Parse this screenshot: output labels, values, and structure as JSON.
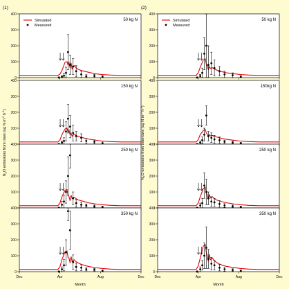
{
  "figure": {
    "x_title": "Month",
    "x_ticks": [
      "Dec",
      "Apr",
      "Aug",
      "Dec"
    ],
    "legend": {
      "simulated": "Simulated",
      "measured": "Measured"
    }
  },
  "chart_data": [
    {
      "type": "line",
      "figure_label": "(1)",
      "ylabel": "N2O emissions from rows (ug N m-2 h-1)",
      "ylabel_parts": {
        "base": "N",
        "sub": "2",
        "mid": "O emissions from rows (ug N m",
        "sup1": "-2",
        "mid2": " h",
        "sup2": "-1",
        "end": ")"
      },
      "xlabel": "Month",
      "x_ticks": [
        "Dec",
        "Apr",
        "Aug",
        "Dec"
      ],
      "ylim": [
        0,
        400
      ],
      "y_ticks": [
        0,
        100,
        200,
        300,
        400
      ],
      "legend": [
        "Simulated",
        "Measured"
      ],
      "panels": [
        {
          "label": "50 kg N",
          "simulated": {
            "x": [
              0,
              2,
              3.8,
              4.0,
              4.2,
              4.5,
              4.7,
              4.8,
              4.9,
              5.0,
              5.1,
              5.2,
              5.4,
              5.6,
              5.8,
              6.1,
              6.4,
              6.8,
              7.5,
              8.2,
              9.0,
              10,
              12
            ],
            "y": [
              14,
              14,
              14,
              22,
              45,
              95,
              100,
              78,
              95,
              60,
              92,
              55,
              75,
              62,
              52,
              45,
              40,
              34,
              24,
              19,
              16,
              14,
              14
            ]
          },
          "measured": {
            "x": [
              3.9,
              4.2,
              4.4,
              4.6,
              4.8,
              5.0,
              5.3,
              5.6,
              6.1,
              6.6,
              7.4,
              8.2
            ],
            "y": [
              0,
              5,
              12,
              30,
              160,
              80,
              70,
              40,
              20,
              8,
              10,
              5
            ],
            "err": [
              5,
              8,
              15,
              35,
              110,
              60,
              50,
              35,
              20,
              10,
              10,
              8
            ]
          },
          "arrows": [
            4.3,
            4.6
          ]
        },
        {
          "label": "150 kg N",
          "simulated": {
            "x": [
              0,
              2,
              3.8,
              4.0,
              4.2,
              4.5,
              4.7,
              4.8,
              4.9,
              5.0,
              5.1,
              5.2,
              5.4,
              5.6,
              5.8,
              6.1,
              6.4,
              6.8,
              7.5,
              8.2,
              9.0,
              10,
              12
            ],
            "y": [
              14,
              14,
              14,
              25,
              60,
              95,
              100,
              75,
              88,
              58,
              70,
              50,
              62,
              55,
              48,
              44,
              38,
              32,
              25,
              19,
              16,
              14,
              14
            ]
          },
          "measured": {
            "x": [
              3.9,
              4.2,
              4.4,
              4.6,
              4.8,
              5.0,
              5.3,
              5.6,
              6.1,
              6.6,
              7.4,
              8.2
            ],
            "y": [
              0,
              10,
              20,
              80,
              160,
              110,
              70,
              50,
              40,
              20,
              15,
              5
            ],
            "err": [
              5,
              10,
              20,
              60,
              90,
              70,
              50,
              30,
              25,
              15,
              12,
              8
            ]
          },
          "arrows": [
            4.3,
            4.6
          ]
        },
        {
          "label": "250 kg N",
          "simulated": {
            "x": [
              0,
              2,
              3.8,
              4.0,
              4.2,
              4.5,
              4.7,
              4.8,
              4.9,
              5.0,
              5.1,
              5.2,
              5.4,
              5.6,
              5.8,
              6.1,
              6.4,
              6.8,
              7.5,
              8.2,
              9.0,
              10,
              12
            ],
            "y": [
              14,
              14,
              14,
              30,
              70,
              110,
              115,
              80,
              70,
              45,
              80,
              60,
              68,
              58,
              50,
              45,
              40,
              32,
              25,
              20,
              16,
              14,
              14
            ]
          },
          "measured": {
            "x": [
              3.9,
              4.2,
              4.4,
              4.6,
              4.8,
              5.0,
              5.3,
              5.6,
              6.1,
              6.6,
              7.4,
              8.2
            ],
            "y": [
              0,
              20,
              40,
              100,
              200,
              330,
              60,
              30,
              20,
              15,
              10,
              5
            ],
            "err": [
              5,
              20,
              40,
              70,
              120,
              80,
              40,
              25,
              15,
              10,
              8,
              6
            ]
          },
          "arrows": [
            4.3,
            4.6
          ]
        },
        {
          "label": "350 kg N",
          "simulated": {
            "x": [
              0,
              2,
              3.8,
              4.0,
              4.2,
              4.5,
              4.7,
              4.8,
              4.9,
              5.0,
              5.1,
              5.2,
              5.4,
              5.6,
              5.8,
              6.1,
              6.4,
              6.8,
              7.5,
              8.2,
              9.0,
              10,
              12
            ],
            "y": [
              14,
              14,
              14,
              30,
              75,
              125,
              130,
              90,
              85,
              55,
              95,
              65,
              75,
              62,
              55,
              46,
              40,
              33,
              25,
              20,
              16,
              14,
              14
            ]
          },
          "measured": {
            "x": [
              3.9,
              4.2,
              4.4,
              4.6,
              4.8,
              5.0,
              5.3,
              5.6,
              6.1,
              6.6,
              7.4,
              8.2
            ],
            "y": [
              0,
              15,
              40,
              120,
              380,
              260,
              60,
              30,
              25,
              15,
              12,
              5
            ],
            "err": [
              5,
              15,
              35,
              80,
              60,
              120,
              45,
              25,
              18,
              10,
              8,
              6
            ]
          },
          "arrows": [
            4.3,
            4.6
          ]
        }
      ]
    },
    {
      "type": "line",
      "figure_label": "(2)",
      "ylabel": "N2O emissions from interrows (ug N m-2 h-1)",
      "ylabel_parts": {
        "base": "N",
        "sub": "2",
        "mid": "O emissions from interrows (ug N m",
        "sup1": "-2",
        "mid2": " h",
        "sup2": "-1",
        "end": ")"
      },
      "xlabel": "Month",
      "x_ticks": [
        "Dec",
        "Apr",
        "Aug",
        "Dec"
      ],
      "ylim": [
        0,
        400
      ],
      "y_ticks": [
        0,
        100,
        200,
        300,
        400
      ],
      "legend": [
        "Simulated",
        "Measured"
      ],
      "panels": [
        {
          "label": "50 kg N",
          "simulated": {
            "x": [
              0,
              2,
              3.8,
              4.0,
              4.2,
              4.5,
              4.7,
              4.8,
              4.9,
              5.0,
              5.1,
              5.2,
              5.4,
              5.6,
              5.8,
              6.1,
              6.4,
              6.8,
              7.5,
              8.2,
              9.0,
              10,
              12
            ],
            "y": [
              14,
              14,
              14,
              30,
              65,
              110,
              118,
              85,
              70,
              50,
              70,
              58,
              62,
              55,
              48,
              42,
              36,
              30,
              24,
              19,
              16,
              14,
              14
            ]
          },
          "measured": {
            "x": [
              3.9,
              4.2,
              4.4,
              4.6,
              4.8,
              5.0,
              5.3,
              5.6,
              6.1,
              6.6,
              7.4,
              8.2
            ],
            "y": [
              0,
              10,
              30,
              150,
              200,
              80,
              90,
              60,
              40,
              20,
              15,
              5
            ],
            "err": [
              5,
              10,
              30,
              100,
              200,
              120,
              70,
              50,
              30,
              20,
              15,
              8
            ]
          },
          "arrows": [
            4.3,
            4.6
          ]
        },
        {
          "label": "150kg N",
          "simulated": {
            "x": [
              0,
              2,
              3.8,
              4.0,
              4.2,
              4.5,
              4.7,
              4.8,
              4.9,
              5.0,
              5.1,
              5.2,
              5.4,
              5.6,
              5.8,
              6.1,
              6.4,
              6.8,
              7.5,
              8.2,
              9.0,
              10,
              12
            ],
            "y": [
              14,
              14,
              14,
              28,
              60,
              85,
              92,
              70,
              62,
              45,
              60,
              52,
              55,
              48,
              45,
              40,
              35,
              30,
              24,
              19,
              16,
              14,
              14
            ]
          },
          "measured": {
            "x": [
              3.9,
              4.2,
              4.4,
              4.6,
              4.8,
              5.0,
              5.3,
              5.6,
              6.1,
              6.6,
              7.4,
              8.2
            ],
            "y": [
              0,
              10,
              25,
              60,
              180,
              50,
              40,
              30,
              25,
              15,
              10,
              5
            ],
            "err": [
              5,
              10,
              20,
              40,
              60,
              30,
              30,
              25,
              20,
              10,
              8,
              6
            ]
          },
          "arrows": [
            4.3,
            4.6
          ]
        },
        {
          "label": "250 kg N",
          "simulated": {
            "x": [
              0,
              2,
              3.8,
              4.0,
              4.2,
              4.5,
              4.7,
              4.8,
              4.9,
              5.0,
              5.1,
              5.2,
              5.4,
              5.6,
              5.8,
              6.1,
              6.4,
              6.8,
              7.5,
              8.2,
              9.0,
              10,
              12
            ],
            "y": [
              14,
              14,
              14,
              30,
              70,
              120,
              130,
              95,
              80,
              55,
              85,
              62,
              70,
              58,
              50,
              44,
              38,
              32,
              25,
              20,
              16,
              14,
              14
            ]
          },
          "measured": {
            "x": [
              3.9,
              4.2,
              4.4,
              4.6,
              4.8,
              5.0,
              5.3,
              5.6,
              6.1,
              6.6,
              7.4,
              8.2
            ],
            "y": [
              0,
              15,
              30,
              140,
              100,
              60,
              40,
              35,
              25,
              15,
              10,
              5
            ],
            "err": [
              5,
              15,
              30,
              80,
              80,
              40,
              30,
              25,
              20,
              12,
              8,
              6
            ]
          },
          "arrows": [
            4.3,
            4.6
          ]
        },
        {
          "label": "350 kg N",
          "simulated": {
            "x": [
              0,
              2,
              3.8,
              4.0,
              4.2,
              4.5,
              4.7,
              4.8,
              4.9,
              5.0,
              5.1,
              5.2,
              5.4,
              5.6,
              5.8,
              6.1,
              6.4,
              6.8,
              7.5,
              8.2,
              9.0,
              10,
              12
            ],
            "y": [
              14,
              14,
              14,
              35,
              85,
              160,
              170,
              120,
              100,
              65,
              110,
              75,
              85,
              68,
              58,
              48,
              40,
              33,
              26,
              20,
              16,
              14,
              14
            ]
          },
          "measured": {
            "x": [
              3.9,
              4.2,
              4.4,
              4.6,
              4.8,
              5.0,
              5.3,
              5.6,
              6.1,
              6.6,
              7.4,
              8.2
            ],
            "y": [
              0,
              15,
              40,
              100,
              150,
              80,
              50,
              40,
              25,
              15,
              10,
              5
            ],
            "err": [
              5,
              15,
              30,
              80,
              130,
              60,
              40,
              30,
              20,
              12,
              8,
              6
            ]
          },
          "arrows": [
            4.3,
            4.6
          ]
        }
      ]
    }
  ]
}
